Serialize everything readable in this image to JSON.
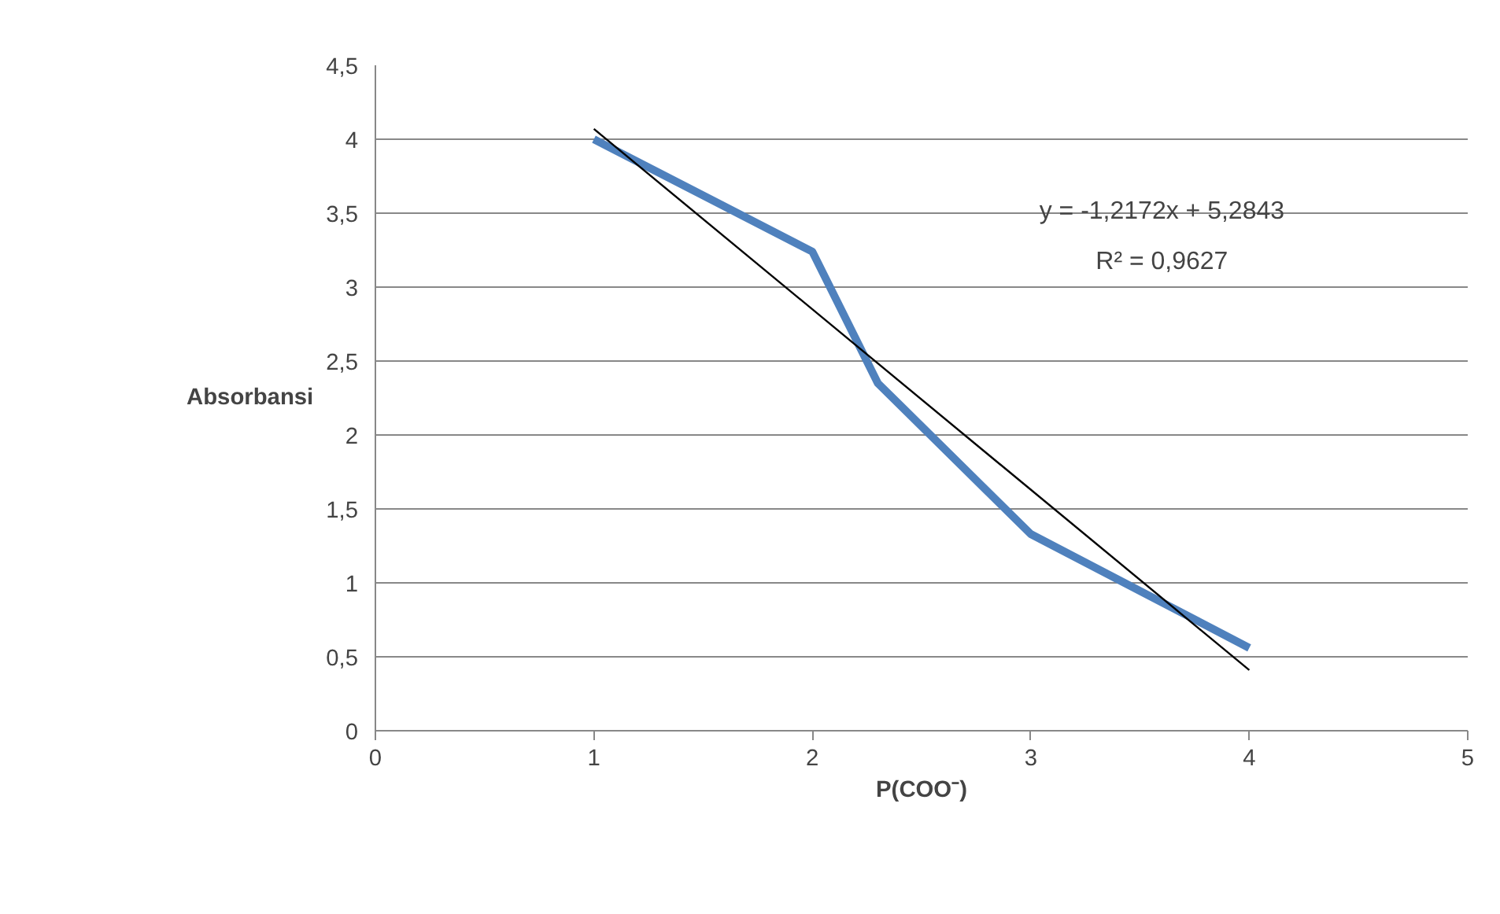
{
  "chart_data": {
    "type": "line",
    "xlabel": "P(COO⁻)",
    "ylabel": "Absorbansi",
    "series": [
      {
        "color": "#4f81bd",
        "x": [
          1,
          2,
          2.3,
          3,
          4
        ],
        "values": [
          4.0,
          3.24,
          2.35,
          1.33,
          0.56
        ]
      },
      {
        "color": "#000000",
        "x": [
          1,
          4
        ],
        "values": [
          4.07,
          0.41
        ]
      }
    ],
    "xlim": [
      0,
      5
    ],
    "xticks": [
      0,
      1,
      2,
      3,
      4,
      5
    ],
    "ylim": [
      0,
      4.5
    ],
    "yticks": [
      0,
      {
        "value": 0.5,
        "label": "0,5"
      },
      1,
      {
        "value": 1.5,
        "label": "1,5"
      },
      2,
      {
        "value": 2.5,
        "label": "2,5"
      },
      3,
      {
        "value": 3.5,
        "label": "3,5"
      },
      4,
      {
        "value": 4.5,
        "label": "4,5"
      }
    ],
    "grid": "y",
    "marker": "none",
    "annotations": [
      "y = -1,2172x + 5,2843",
      "R² = 0,9627"
    ]
  }
}
